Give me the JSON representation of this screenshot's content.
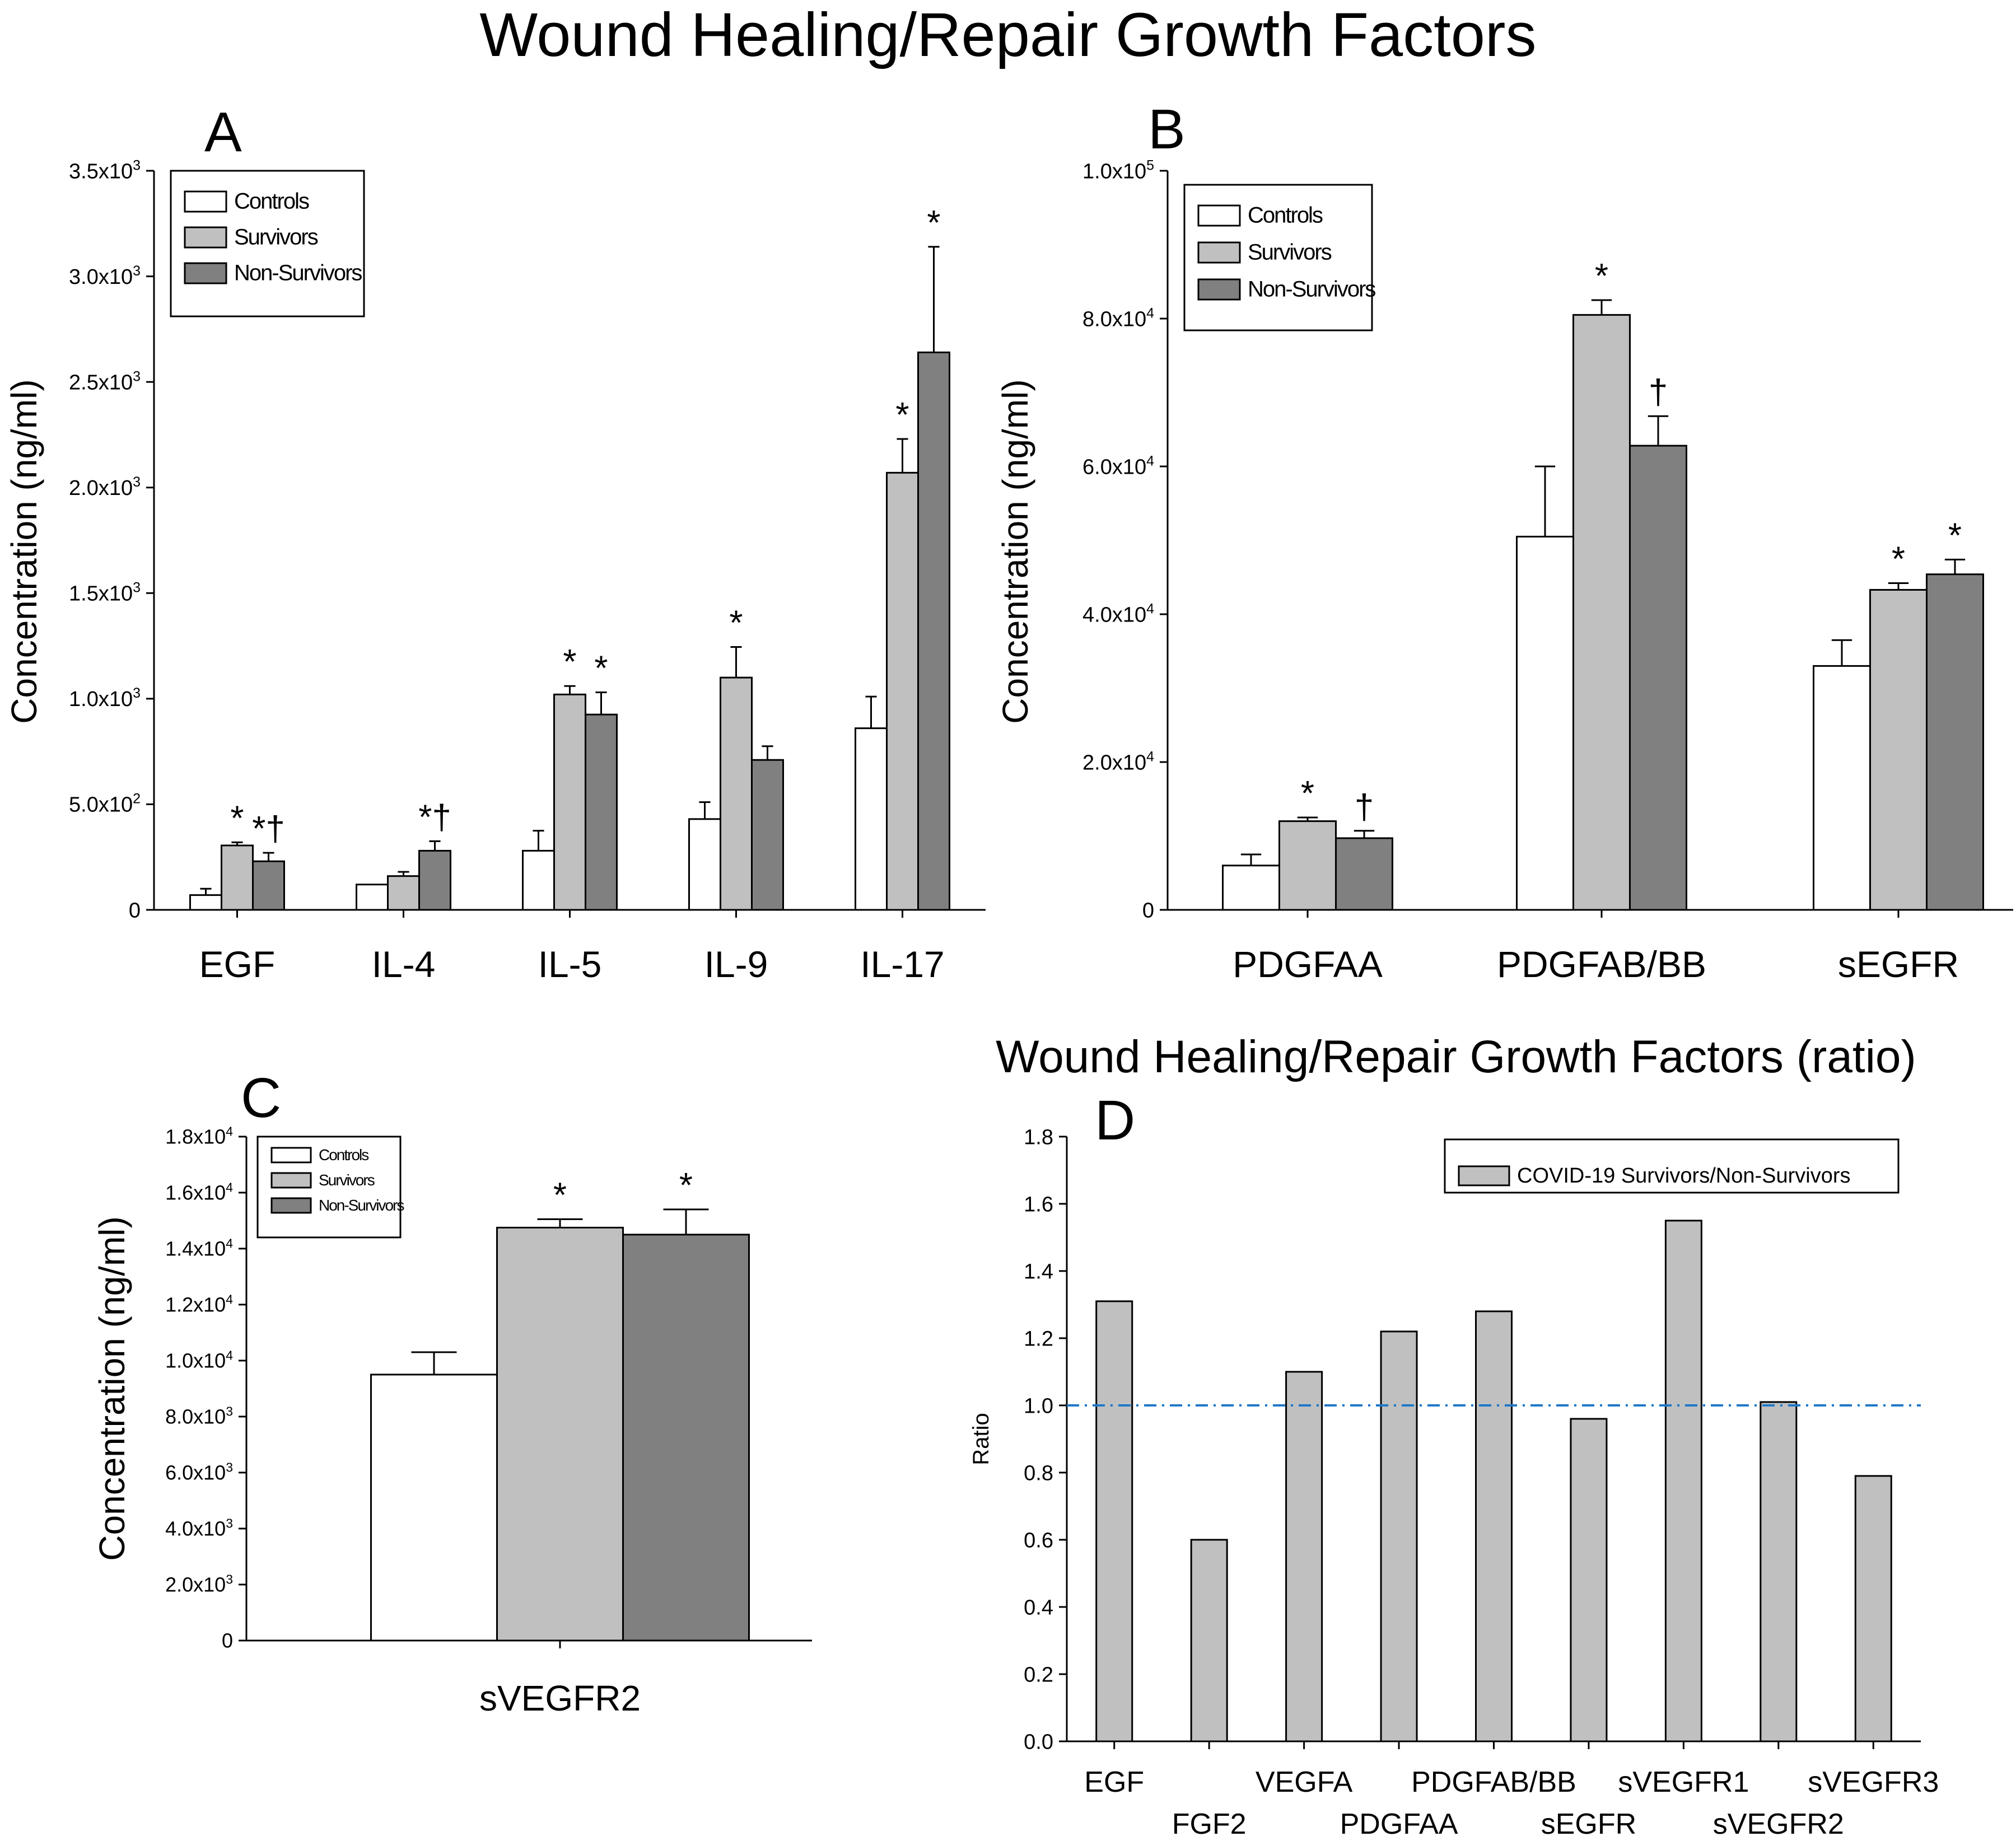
{
  "figure_title": "Wound Healing/Repair Growth Factors",
  "colors": {
    "controls": "#ffffff",
    "survivors": "#c0c0c0",
    "non_survivors": "#808080",
    "ratio_bar": "#c0c0c0",
    "reference_line": "#1f78c8"
  },
  "chart_data": [
    {
      "panel": "A",
      "type": "bar",
      "title": "",
      "ylabel": "Concentration  (ng/ml)",
      "xlabel": "",
      "ylim": [
        0,
        3500
      ],
      "ytick_values": [
        0,
        500,
        1000,
        1500,
        2000,
        2500,
        3000,
        3500
      ],
      "ytick_labels": [
        {
          "mantissa": "0",
          "exp": ""
        },
        {
          "mantissa": "5.0x10",
          "exp": "2"
        },
        {
          "mantissa": "1.0x10",
          "exp": "3"
        },
        {
          "mantissa": "1.5x10",
          "exp": "3"
        },
        {
          "mantissa": "2.0x10",
          "exp": "3"
        },
        {
          "mantissa": "2.5x10",
          "exp": "3"
        },
        {
          "mantissa": "3.0x10",
          "exp": "3"
        },
        {
          "mantissa": "3.5x10",
          "exp": "3"
        }
      ],
      "categories": [
        "EGF",
        "IL-4",
        "IL-5",
        "IL-9",
        "IL-17"
      ],
      "series": [
        {
          "name": "Controls",
          "values": [
            70,
            120,
            280,
            430,
            860
          ],
          "errors": [
            30,
            0,
            95,
            80,
            150
          ],
          "annotations": [
            "",
            "",
            "",
            "",
            ""
          ]
        },
        {
          "name": "Survivors",
          "values": [
            305,
            160,
            1020,
            1100,
            2070
          ],
          "errors": [
            15,
            20,
            40,
            145,
            160
          ],
          "annotations": [
            "*",
            "",
            "*",
            "*",
            "*"
          ]
        },
        {
          "name": "Non-Survivors",
          "values": [
            230,
            280,
            925,
            710,
            2640
          ],
          "errors": [
            40,
            45,
            105,
            65,
            500
          ],
          "annotations": [
            "*†",
            "*†",
            "*",
            "",
            "*"
          ]
        }
      ],
      "legend": [
        "Controls",
        "Survivors",
        "Non-Survivors"
      ],
      "legend_position": "top-left"
    },
    {
      "panel": "B",
      "type": "bar",
      "title": "",
      "ylabel": "Concentration  (ng/ml)",
      "xlabel": "",
      "ylim": [
        0,
        100000
      ],
      "ytick_values": [
        0,
        20000,
        40000,
        60000,
        80000,
        100000
      ],
      "ytick_labels": [
        {
          "mantissa": "0",
          "exp": ""
        },
        {
          "mantissa": "2.0x10",
          "exp": "4"
        },
        {
          "mantissa": "4.0x10",
          "exp": "4"
        },
        {
          "mantissa": "6.0x10",
          "exp": "4"
        },
        {
          "mantissa": "8.0x10",
          "exp": "4"
        },
        {
          "mantissa": "1.0x10",
          "exp": "5"
        }
      ],
      "categories": [
        "PDGFAA",
        "PDGFAB/BB",
        "sEGFR"
      ],
      "series": [
        {
          "name": "Controls",
          "values": [
            6000,
            50500,
            33000
          ],
          "errors": [
            1500,
            9500,
            3500
          ],
          "annotations": [
            "",
            "",
            ""
          ]
        },
        {
          "name": "Survivors",
          "values": [
            12000,
            80500,
            43300
          ],
          "errors": [
            500,
            2000,
            900
          ],
          "annotations": [
            "*",
            "*",
            "*"
          ]
        },
        {
          "name": "Non-Survivors",
          "values": [
            9700,
            62800,
            45400
          ],
          "errors": [
            1000,
            4000,
            2000
          ],
          "annotations": [
            "†",
            "†",
            "*"
          ]
        }
      ],
      "legend": [
        "Controls",
        "Survivors",
        "Non-Survivors"
      ],
      "legend_position": "top-left"
    },
    {
      "panel": "C",
      "type": "bar",
      "title": "",
      "ylabel": "Concentration  (ng/ml)",
      "xlabel": "",
      "ylim": [
        0,
        18000
      ],
      "ytick_values": [
        0,
        2000,
        4000,
        6000,
        8000,
        10000,
        12000,
        14000,
        16000,
        18000
      ],
      "ytick_labels": [
        {
          "mantissa": "0",
          "exp": ""
        },
        {
          "mantissa": "2.0x10",
          "exp": "3"
        },
        {
          "mantissa": "4.0x10",
          "exp": "3"
        },
        {
          "mantissa": "6.0x10",
          "exp": "3"
        },
        {
          "mantissa": "8.0x10",
          "exp": "3"
        },
        {
          "mantissa": "1.0x10",
          "exp": "4"
        },
        {
          "mantissa": "1.2x10",
          "exp": "4"
        },
        {
          "mantissa": "1.4x10",
          "exp": "4"
        },
        {
          "mantissa": "1.6x10",
          "exp": "4"
        },
        {
          "mantissa": "1.8x10",
          "exp": "4"
        }
      ],
      "categories": [
        "sVEGFR2"
      ],
      "series": [
        {
          "name": "Controls",
          "values": [
            9500
          ],
          "errors": [
            800
          ],
          "annotations": [
            ""
          ]
        },
        {
          "name": "Survivors",
          "values": [
            14750
          ],
          "errors": [
            300
          ],
          "annotations": [
            "*"
          ]
        },
        {
          "name": "Non-Survivors",
          "values": [
            14500
          ],
          "errors": [
            900
          ],
          "annotations": [
            "*"
          ]
        }
      ],
      "legend": [
        "Controls",
        "Survivors",
        "Non-Survivors"
      ],
      "legend_position": "top-left"
    },
    {
      "panel": "D",
      "type": "bar",
      "title": "Wound Healing/Repair Growth Factors (ratio)",
      "ylabel": "Ratio",
      "xlabel": "",
      "ylim": [
        0,
        1.8
      ],
      "ytick_values": [
        0,
        0.2,
        0.4,
        0.6,
        0.8,
        1.0,
        1.2,
        1.4,
        1.6,
        1.8
      ],
      "ytick_labels": [
        {
          "mantissa": "0.0",
          "exp": ""
        },
        {
          "mantissa": "0.2",
          "exp": ""
        },
        {
          "mantissa": "0.4",
          "exp": ""
        },
        {
          "mantissa": "0.6",
          "exp": ""
        },
        {
          "mantissa": "0.8",
          "exp": ""
        },
        {
          "mantissa": "1.0",
          "exp": ""
        },
        {
          "mantissa": "1.2",
          "exp": ""
        },
        {
          "mantissa": "1.4",
          "exp": ""
        },
        {
          "mantissa": "1.6",
          "exp": ""
        },
        {
          "mantissa": "1.8",
          "exp": ""
        }
      ],
      "categories": [
        "EGF",
        "FGF2",
        "VEGFA",
        "PDGFAA",
        "PDGFAB/BB",
        "sEGFR",
        "sVEGFR1",
        "sVEGFR2",
        "sVEGFR3"
      ],
      "series": [
        {
          "name": "COVID-19 Survivors/Non-Survivors",
          "values": [
            1.31,
            0.6,
            1.1,
            1.22,
            1.28,
            0.96,
            1.55,
            1.01,
            0.79
          ]
        }
      ],
      "reference_line": 1.0,
      "legend": [
        "COVID-19 Survivors/Non-Survivors"
      ],
      "legend_position": "top-right"
    }
  ]
}
